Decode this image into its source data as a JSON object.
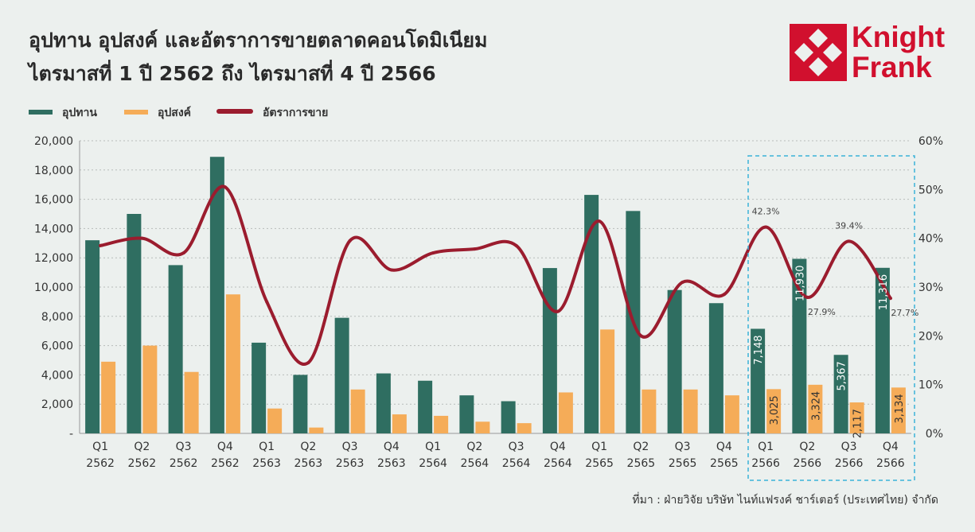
{
  "header": {
    "title_line1": "อุปทาน อุปสงค์ และอัตราการขายตลาดคอนโดมิเนียม",
    "title_line2": "ไตรมาสที่ 1 ปี 2562 ถึง ไตรมาสที่ 4 ปี 2566"
  },
  "logo": {
    "line1": "Knight",
    "line2": "Frank",
    "color": "#d1102e"
  },
  "source_note": "ที่มา : ฝ่ายวิจัย บริษัท ไนท์แฟรงค์ ชาร์เตอร์ (ประเทศไทย) จำกัด",
  "chart_data": {
    "type": "bar",
    "categories": [
      [
        "Q1",
        "2562"
      ],
      [
        "Q2",
        "2562"
      ],
      [
        "Q3",
        "2562"
      ],
      [
        "Q4",
        "2562"
      ],
      [
        "Q1",
        "2563"
      ],
      [
        "Q2",
        "2563"
      ],
      [
        "Q3",
        "2563"
      ],
      [
        "Q4",
        "2563"
      ],
      [
        "Q1",
        "2564"
      ],
      [
        "Q2",
        "2564"
      ],
      [
        "Q3",
        "2564"
      ],
      [
        "Q4",
        "2564"
      ],
      [
        "Q1",
        "2565"
      ],
      [
        "Q2",
        "2565"
      ],
      [
        "Q3",
        "2565"
      ],
      [
        "Q4",
        "2565"
      ],
      [
        "Q1",
        "2566"
      ],
      [
        "Q2",
        "2566"
      ],
      [
        "Q3",
        "2566"
      ],
      [
        "Q4",
        "2566"
      ]
    ],
    "series": [
      {
        "name": "อุปทาน",
        "kind": "bar",
        "color": "#2f6e61",
        "axis": "left",
        "values": [
          13200,
          15000,
          11500,
          18900,
          6200,
          4000,
          7900,
          4100,
          3600,
          2600,
          2200,
          11300,
          16300,
          15200,
          9800,
          8900,
          7148,
          11930,
          5367,
          11316
        ],
        "labels": {
          "16": "7,148",
          "17": "11,930",
          "18": "5,367",
          "19": "11,316"
        }
      },
      {
        "name": "อุปสงค์",
        "kind": "bar",
        "color": "#f5ac58",
        "axis": "left",
        "values": [
          4900,
          6000,
          4200,
          9500,
          1700,
          400,
          3000,
          1300,
          1200,
          800,
          700,
          2800,
          7100,
          3000,
          3000,
          2600,
          3025,
          3324,
          2117,
          3134
        ],
        "labels": {
          "16": "3,025",
          "17": "3,324",
          "18": "2,117",
          "19": "3,134"
        }
      },
      {
        "name": "อัตราการขาย",
        "kind": "line",
        "color": "#9b1c2e",
        "axis": "right",
        "values": [
          38.5,
          40.0,
          37.0,
          50.5,
          27.0,
          14.5,
          39.5,
          33.5,
          37.0,
          37.8,
          38.5,
          25.0,
          43.5,
          20.0,
          31.0,
          28.5,
          42.3,
          27.9,
          39.4,
          27.7
        ],
        "labels": {
          "16": "42.3%",
          "17": "27.9%",
          "18": "39.4%",
          "19": "27.7%"
        }
      }
    ],
    "yaxis_left": {
      "min": 0,
      "max": 20000,
      "ticks": [
        "-",
        "2,000",
        "4,000",
        "6,000",
        "8,000",
        "10,000",
        "12,000",
        "14,000",
        "16,000",
        "18,000",
        "20,000"
      ]
    },
    "yaxis_right": {
      "min": 0,
      "max": 60,
      "ticks": [
        "0%",
        "10%",
        "20%",
        "30%",
        "40%",
        "50%",
        "60%"
      ]
    },
    "grid": "horizontal dotted",
    "legend": "top-left",
    "highlight": {
      "from_index": 16,
      "to_index": 19,
      "style": "dashed box",
      "color": "#3bb3d9"
    }
  }
}
